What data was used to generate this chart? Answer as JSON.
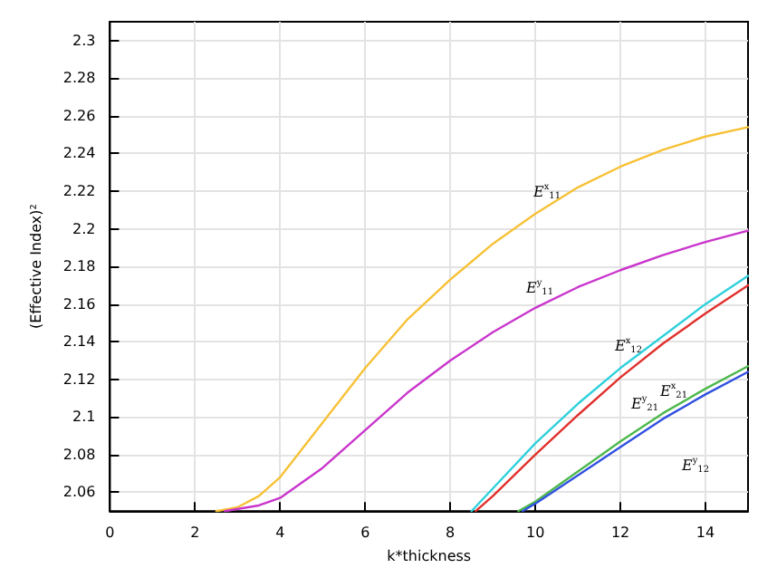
{
  "chart_data": {
    "type": "line",
    "xlabel": "k*thickness",
    "ylabel": "(Effective Index)²",
    "xlim": [
      0,
      15
    ],
    "ylim": [
      2.05,
      2.31
    ],
    "xticks": [
      0,
      2,
      4,
      6,
      8,
      10,
      12,
      14
    ],
    "yticks": [
      2.06,
      2.08,
      2.1,
      2.12,
      2.14,
      2.16,
      2.18,
      2.2,
      2.22,
      2.24,
      2.26,
      2.28,
      2.3
    ],
    "grid": true,
    "marker": "none",
    "line_style": "solid",
    "series": [
      {
        "color": "#f7c136",
        "x": [
          2.5,
          3,
          3.5,
          4,
          5,
          6,
          7,
          8,
          9,
          10,
          11,
          12,
          13,
          14,
          15
        ],
        "values": [
          2.05,
          2.052,
          2.058,
          2.068,
          2.097,
          2.126,
          2.152,
          2.173,
          2.192,
          2.208,
          2.222,
          2.233,
          2.242,
          2.249,
          2.254
        ]
      },
      {
        "color": "#c935cc",
        "x": [
          2.7,
          3.5,
          4,
          5,
          6,
          7,
          8,
          9,
          10,
          11,
          12,
          13,
          14,
          15
        ],
        "values": [
          2.05,
          2.053,
          2.057,
          2.073,
          2.093,
          2.113,
          2.13,
          2.145,
          2.158,
          2.169,
          2.178,
          2.186,
          2.193,
          2.199
        ]
      },
      {
        "color": "#2fd0dc",
        "x": [
          8.5,
          9,
          10,
          11,
          12,
          13,
          14,
          15
        ],
        "values": [
          2.05,
          2.062,
          2.086,
          2.107,
          2.126,
          2.143,
          2.16,
          2.175
        ]
      },
      {
        "color": "#e0302c",
        "x": [
          8.6,
          9,
          10,
          11,
          12,
          13,
          14,
          15
        ],
        "values": [
          2.05,
          2.058,
          2.08,
          2.101,
          2.121,
          2.139,
          2.155,
          2.17
        ]
      },
      {
        "color": "#4cb84c",
        "x": [
          9.6,
          10,
          11,
          12,
          13,
          14,
          15
        ],
        "values": [
          2.05,
          2.055,
          2.071,
          2.087,
          2.102,
          2.115,
          2.127
        ]
      },
      {
        "color": "#3050e0",
        "x": [
          9.7,
          10,
          11,
          12,
          13,
          14,
          15
        ],
        "values": [
          2.05,
          2.054,
          2.069,
          2.084,
          2.099,
          2.112,
          2.124
        ]
      }
    ],
    "annotations": [
      "E$^{x}$$_{11}$",
      "E$^{y}$$_{11}$",
      "E$^{x}$$_{12}$",
      "E$^{x}$$_{21}$",
      "E$^{y}$$_{21}$",
      "E$^{y}$$_{12}$"
    ]
  }
}
